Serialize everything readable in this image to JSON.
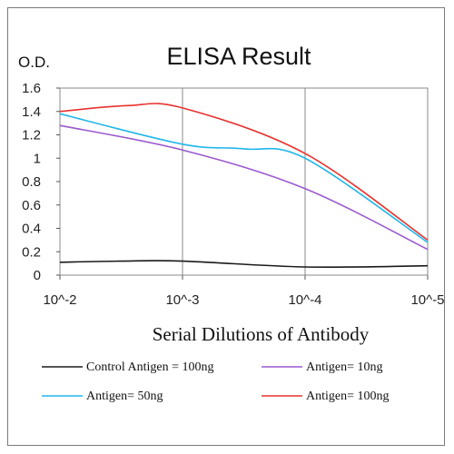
{
  "chart_data": {
    "type": "line",
    "title": "ELISA Result",
    "ylabel": "O.D.",
    "xlabel": "Serial Dilutions  of Antibody",
    "x_tick_labels": [
      "10^-2",
      "10^-3",
      "10^-4",
      "10^-5"
    ],
    "y_ticks": [
      "0",
      "0.2",
      "0.4",
      "0.6",
      "0.8",
      "1",
      "1.2",
      "1.4",
      "1.6"
    ],
    "ylim": [
      0,
      1.6
    ],
    "grid": "vertical lines at each x tick",
    "legend_position": "bottom",
    "series": [
      {
        "name": "Control Antigen = 100ng",
        "color": "#1a1a1a",
        "points": [
          [
            0,
            0.11
          ],
          [
            0.5,
            0.12
          ],
          [
            1,
            0.12
          ],
          [
            2,
            0.07
          ],
          [
            3,
            0.08
          ]
        ]
      },
      {
        "name": "Antigen= 10ng",
        "color": "#9b59d0",
        "points": [
          [
            0,
            1.28
          ],
          [
            1,
            1.07
          ],
          [
            2,
            0.74
          ],
          [
            3,
            0.22
          ]
        ]
      },
      {
        "name": "Antigen= 50ng",
        "color": "#23b7ec",
        "points": [
          [
            0,
            1.38
          ],
          [
            1,
            1.12
          ],
          [
            1.5,
            1.08
          ],
          [
            2,
            1.0
          ],
          [
            3,
            0.28
          ]
        ]
      },
      {
        "name": "Antigen= 100ng",
        "color": "#e8322e",
        "points": [
          [
            0,
            1.4
          ],
          [
            0.55,
            1.45
          ],
          [
            1,
            1.43
          ],
          [
            2,
            1.04
          ],
          [
            3,
            0.3
          ]
        ]
      }
    ]
  }
}
